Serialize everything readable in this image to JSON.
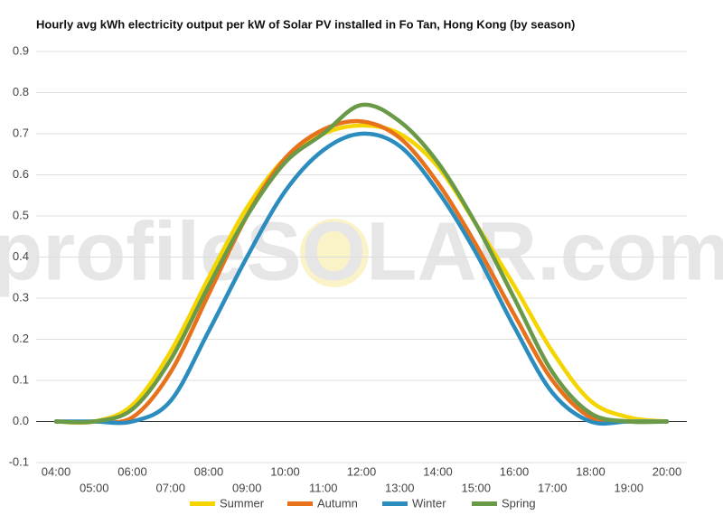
{
  "chart_data": {
    "type": "line",
    "title": "Hourly avg kWh electricity output per kW of Solar PV installed in Fo Tan, Hong Kong (by season)",
    "watermark": "profileSOLAR.com",
    "categories": [
      "04:00",
      "05:00",
      "06:00",
      "07:00",
      "08:00",
      "09:00",
      "10:00",
      "11:00",
      "12:00",
      "13:00",
      "14:00",
      "15:00",
      "16:00",
      "17:00",
      "18:00",
      "19:00",
      "20:00"
    ],
    "series": [
      {
        "name": "Summer",
        "color": "#f5d400",
        "values": [
          0,
          0,
          0.04,
          0.17,
          0.35,
          0.52,
          0.64,
          0.7,
          0.72,
          0.7,
          0.62,
          0.48,
          0.33,
          0.17,
          0.05,
          0.01,
          0
        ]
      },
      {
        "name": "Autumn",
        "color": "#e8711c",
        "values": [
          0,
          0,
          0.01,
          0.12,
          0.31,
          0.5,
          0.64,
          0.71,
          0.73,
          0.69,
          0.58,
          0.43,
          0.26,
          0.1,
          0.01,
          0,
          0
        ]
      },
      {
        "name": "Winter",
        "color": "#2b8cbe",
        "values": [
          0,
          0,
          0,
          0.05,
          0.22,
          0.4,
          0.56,
          0.66,
          0.7,
          0.67,
          0.56,
          0.41,
          0.23,
          0.07,
          0,
          0,
          0
        ]
      },
      {
        "name": "Spring",
        "color": "#6a9a48",
        "values": [
          0,
          0,
          0.03,
          0.15,
          0.33,
          0.5,
          0.63,
          0.7,
          0.77,
          0.73,
          0.63,
          0.48,
          0.3,
          0.12,
          0.02,
          0,
          0
        ]
      }
    ],
    "ylim": [
      -0.1,
      0.9
    ],
    "yticks": [
      -0.1,
      {
        "value": 0,
        "label": "0.0"
      },
      0.1,
      0.2,
      0.3,
      0.4,
      0.5,
      0.6,
      0.7,
      0.8,
      0.9
    ],
    "grid": true
  }
}
